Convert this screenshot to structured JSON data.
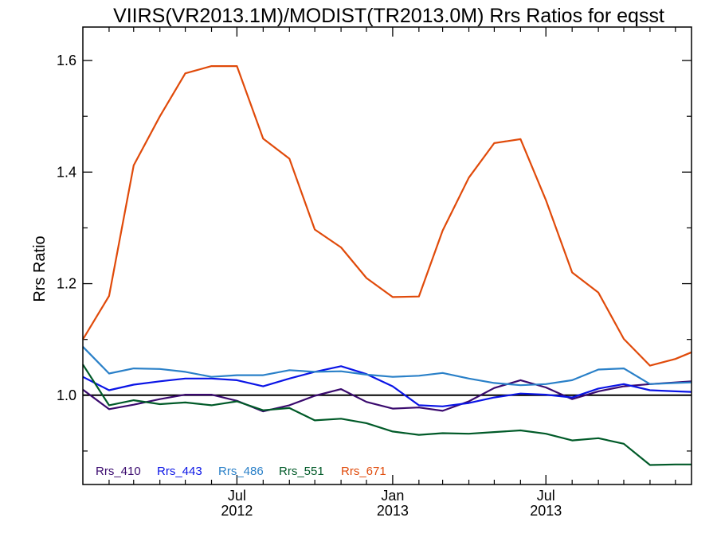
{
  "chart_data": {
    "type": "line",
    "title": "VIIRS(VR2013.1M)/MODIST(TR2013.0M)  Rrs Ratios for eqsst",
    "xlabel": "",
    "ylabel": "Rrs Ratio",
    "xlim": [
      "2012-01-01",
      "2013-12-20"
    ],
    "ylim": [
      0.84,
      1.66
    ],
    "yticks": [
      1.0,
      1.2,
      1.4,
      1.6
    ],
    "ytick_labels": [
      "1.0",
      "1.2",
      "1.4",
      "1.6"
    ],
    "xticks": [
      {
        "date": "2012-07-01",
        "label": [
          "Jul",
          "2012"
        ]
      },
      {
        "date": "2013-01-01",
        "label": [
          "Jan",
          "2013"
        ]
      },
      {
        "date": "2013-07-01",
        "label": [
          "Jul",
          "2013"
        ]
      }
    ],
    "reference_line": 1.0,
    "grid": false,
    "legend_position": "bottom-left",
    "x": [
      "2012-01-01",
      "2012-02-01",
      "2012-03-01",
      "2012-04-01",
      "2012-05-01",
      "2012-06-01",
      "2012-07-01",
      "2012-08-01",
      "2012-09-01",
      "2012-10-01",
      "2012-11-01",
      "2012-12-01",
      "2013-01-01",
      "2013-02-01",
      "2013-03-01",
      "2013-04-01",
      "2013-05-01",
      "2013-06-01",
      "2013-07-01",
      "2013-08-01",
      "2013-09-01",
      "2013-10-01",
      "2013-11-01",
      "2013-12-01",
      "2013-12-20"
    ],
    "series": [
      {
        "name": "Rrs_410",
        "color": "#3a0a6e",
        "values": [
          1.01,
          0.975,
          0.983,
          0.993,
          1.001,
          1.001,
          0.99,
          0.971,
          0.982,
          0.999,
          1.011,
          0.988,
          0.976,
          0.978,
          0.972,
          0.989,
          1.013,
          1.027,
          1.014,
          0.993,
          1.007,
          1.016,
          1.02,
          1.023,
          1.025
        ]
      },
      {
        "name": "Rrs_443",
        "color": "#0a14e6",
        "values": [
          1.033,
          1.009,
          1.019,
          1.025,
          1.03,
          1.03,
          1.027,
          1.016,
          1.03,
          1.042,
          1.052,
          1.038,
          1.016,
          0.982,
          0.98,
          0.986,
          0.996,
          1.003,
          1.001,
          0.996,
          1.012,
          1.02,
          1.009,
          1.007,
          1.006
        ]
      },
      {
        "name": "Rrs_486",
        "color": "#2a80c8",
        "values": [
          1.087,
          1.039,
          1.048,
          1.047,
          1.042,
          1.033,
          1.036,
          1.036,
          1.045,
          1.042,
          1.043,
          1.037,
          1.033,
          1.035,
          1.04,
          1.03,
          1.022,
          1.018,
          1.02,
          1.027,
          1.046,
          1.048,
          1.02,
          1.022,
          1.023
        ]
      },
      {
        "name": "Rrs_551",
        "color": "#005a28",
        "values": [
          1.055,
          0.982,
          0.991,
          0.984,
          0.987,
          0.982,
          0.989,
          0.973,
          0.977,
          0.955,
          0.958,
          0.95,
          0.935,
          0.929,
          0.932,
          0.931,
          0.934,
          0.937,
          0.931,
          0.919,
          0.923,
          0.913,
          0.875,
          0.876,
          0.876
        ]
      },
      {
        "name": "Rrs_671",
        "color": "#e04a0a",
        "values": [
          1.1,
          1.178,
          1.412,
          1.5,
          1.577,
          1.59,
          1.59,
          1.46,
          1.424,
          1.297,
          1.265,
          1.21,
          1.176,
          1.177,
          1.295,
          1.39,
          1.452,
          1.459,
          1.35,
          1.22,
          1.184,
          1.101,
          1.053,
          1.065,
          1.077
        ]
      }
    ]
  }
}
